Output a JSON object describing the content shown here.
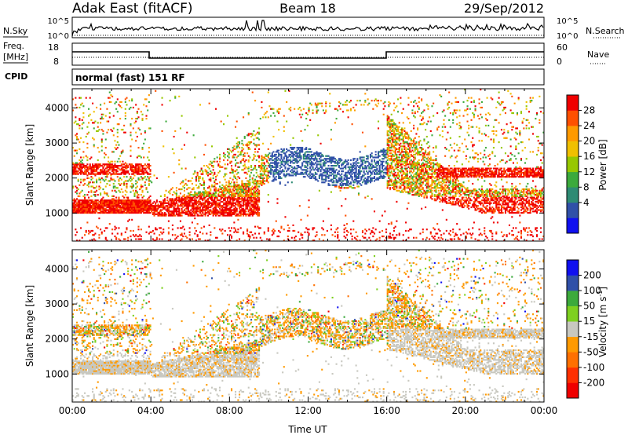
{
  "header": {
    "title": "Adak East (fitACF)",
    "beam": "Beam 18",
    "date": "29/Sep/2012"
  },
  "strip": {
    "nsky_label": "N.Sky",
    "nsky_ticks": [
      "10^5",
      "10^0"
    ],
    "nsearch_label": "N.Search",
    "nsearch_ticks": [
      "10^5",
      "10^0"
    ],
    "freq_label": "Freq.",
    "freq_unit": "[MHz]",
    "freq_ticks": [
      "18",
      "8"
    ],
    "nave_label": "Nave",
    "nave_ticks": [
      "60",
      "0"
    ],
    "cpid_label": "CPID",
    "cpid_value": "normal (fast) 151 RF"
  },
  "chart_data": [
    {
      "type": "heatmap",
      "panel": "power",
      "ylabel": "Slant Range [km]",
      "yticks": [
        "1000",
        "2000",
        "3000",
        "4000"
      ],
      "ylim": [
        200,
        4550
      ],
      "xlim": [
        0,
        24
      ],
      "colorbar_label": "Power [dB]",
      "colorbar_ticks": [
        "28",
        "24",
        "20",
        "16",
        "12",
        "8",
        "4"
      ],
      "colors": [
        "#f00000",
        "#ff5000",
        "#ff9a00",
        "#f0c000",
        "#97c800",
        "#3caa3c",
        "#2e8b74",
        "#3050a8",
        "#1010f0"
      ],
      "bands": [
        {
          "t": [
            0.0,
            4.0
          ],
          "r": [
            1000,
            1400
          ],
          "level": 0
        },
        {
          "t": [
            0.0,
            4.0
          ],
          "r": [
            2100,
            2400
          ],
          "level": 1
        },
        {
          "t": [
            4.0,
            9.0
          ],
          "r": [
            900,
            1300
          ],
          "level": 0
        },
        {
          "t": [
            10.0,
            16.0
          ],
          "r": [
            1900,
            2900
          ],
          "level": 7
        },
        {
          "t": [
            16.0,
            24.0
          ],
          "r": [
            1000,
            1600
          ],
          "level": 0
        },
        {
          "t": [
            18.5,
            24.0
          ],
          "r": [
            2000,
            2300
          ],
          "level": 0
        }
      ]
    },
    {
      "type": "heatmap",
      "panel": "velocity",
      "ylabel": "Slant Range [km]",
      "yticks": [
        "1000",
        "2000",
        "3000",
        "4000"
      ],
      "ylim": [
        200,
        4550
      ],
      "xlim": [
        0,
        24
      ],
      "xticks": [
        "00:00",
        "04:00",
        "08:00",
        "12:00",
        "16:00",
        "20:00",
        "00:00"
      ],
      "xlabel": "Time UT",
      "colorbar_label": "Velocity [m s",
      "colorbar_label_sup": "-1",
      "colorbar_label_end": "]",
      "colorbar_ticks": [
        "200",
        "100",
        "50",
        "15",
        "-15",
        "-50",
        "-100",
        "-200"
      ],
      "colors": [
        "#1010f0",
        "#3050a8",
        "#3caa3c",
        "#7ed020",
        "#c8c8c0",
        "#ff9a00",
        "#ff7000",
        "#ff3000",
        "#f00000"
      ]
    }
  ]
}
